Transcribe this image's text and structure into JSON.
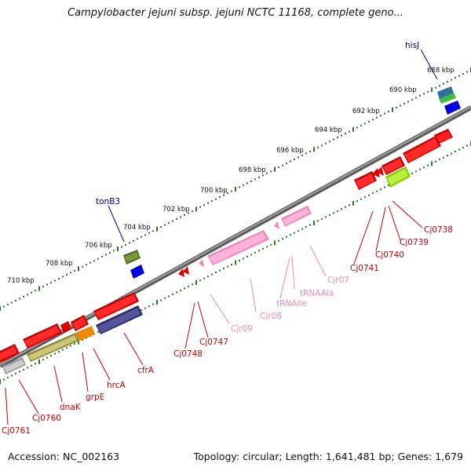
{
  "title": "Campylobacter jejuni subsp. jejuni NCTC 11168, complete geno...",
  "footer": {
    "accession": "Accession: NC_002163",
    "info": "Topology: circular; Length: 1,641,481 bp; Genes: 1,679"
  },
  "scale_labels": [
    "688 kbp",
    "690 kbp",
    "692 kbp",
    "694 kbp",
    "696 kbp",
    "698 kbp",
    "700 kbp",
    "702 kbp",
    "704 kbp",
    "706 kbp",
    "708 kbp",
    "710 kbp"
  ],
  "genes": {
    "outer": [
      "hisJ",
      "tonB3"
    ],
    "inner_coding": [
      "Cj0738",
      "Cj0739",
      "Cj0740",
      "Cj0741",
      "Cj0747",
      "Cj0748",
      "cfrA",
      "hrcA",
      "grpE",
      "dnaK",
      "Cj0760",
      "Cj0761"
    ],
    "inner_rna": [
      "Cjr07",
      "tRNAAla",
      "tRNAIle",
      "Cjr08",
      "Cjr09"
    ]
  },
  "colors": {
    "backbone": "#8a8a8a",
    "tick": "#2a7a2a",
    "cds": "#ff0000",
    "rna": "#ffaad4",
    "cds_label": "#cc0000",
    "rna_label": "#ee88bb",
    "outer_label": "#00008b"
  }
}
